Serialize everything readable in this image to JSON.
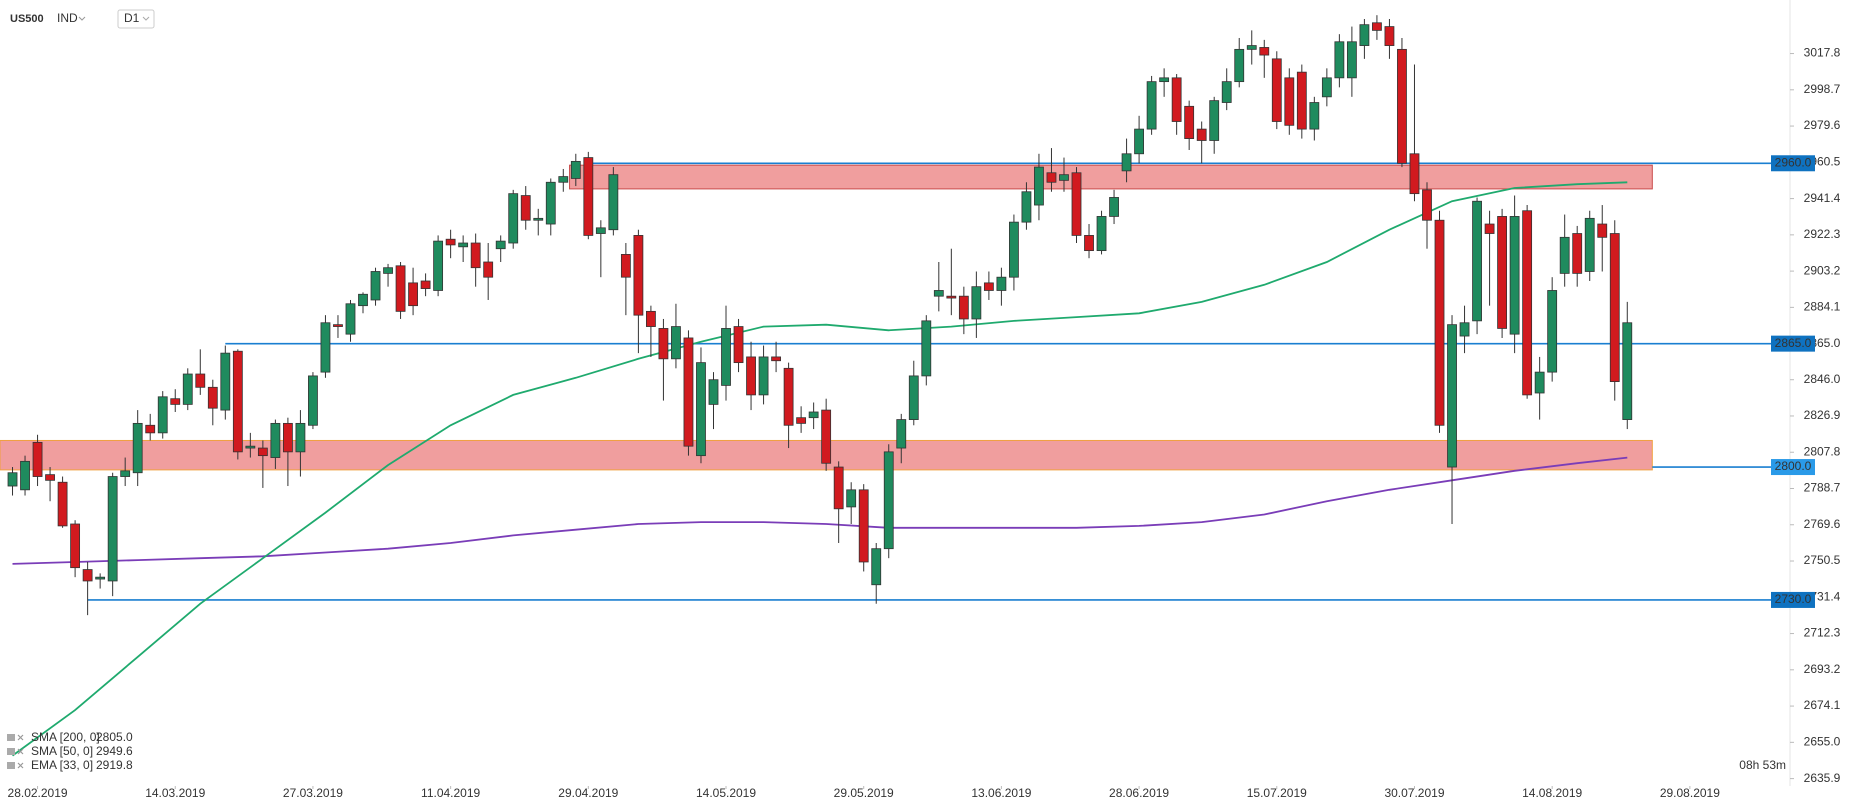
{
  "header": {
    "symbol": "US500",
    "market": "IND",
    "interval": "D1"
  },
  "chart_data": {
    "type": "candlestick",
    "up_color": "#1f8b5e",
    "down_color": "#d11a1f",
    "xlim": [
      -1,
      142
    ],
    "xticks": [
      {
        "value": 2,
        "label": "28.02.2019"
      },
      {
        "value": 13,
        "label": "14.03.2019"
      },
      {
        "value": 24,
        "label": "27.03.2019"
      },
      {
        "value": 35,
        "label": "11.04.2019"
      },
      {
        "value": 46,
        "label": "29.04.2019"
      },
      {
        "value": 57,
        "label": "14.05.2019"
      },
      {
        "value": 68,
        "label": "29.05.2019"
      },
      {
        "value": 79,
        "label": "13.06.2019"
      },
      {
        "value": 90,
        "label": "28.06.2019"
      },
      {
        "value": 101,
        "label": "15.07.2019"
      },
      {
        "value": 112,
        "label": "30.07.2019"
      },
      {
        "value": 123,
        "label": "14.08.2019"
      },
      {
        "value": 134,
        "label": "29.08.2019"
      }
    ],
    "ylim": [
      2632,
      3046
    ],
    "yticks": [
      3017.8,
      2998.7,
      2979.6,
      2960.5,
      2941.4,
      2922.3,
      2903.2,
      2884.1,
      {
        "value": 2865,
        "label": "2865.0"
      },
      {
        "value": 2846,
        "label": "2846.0"
      },
      2826.9,
      2807.8,
      2788.7,
      2769.6,
      2750.5,
      2731.4,
      2712.3,
      2693.2,
      2674.1,
      {
        "value": 2655,
        "label": "2655.0"
      },
      2635.9
    ],
    "ohlc": [
      [
        2790,
        2800,
        2785,
        2797
      ],
      [
        2788,
        2806,
        2785,
        2803
      ],
      [
        2813,
        2817,
        2790,
        2795
      ],
      [
        2796,
        2800,
        2782,
        2793
      ],
      [
        2792,
        2795,
        2768,
        2769
      ],
      [
        2770,
        2772,
        2742,
        2747
      ],
      [
        2746,
        2750,
        2722,
        2740
      ],
      [
        2741,
        2744,
        2736,
        2742
      ],
      [
        2740,
        2797,
        2732,
        2795
      ],
      [
        2795,
        2805,
        2790,
        2798
      ],
      [
        2797,
        2830,
        2790,
        2823
      ],
      [
        2822,
        2828,
        2814,
        2818
      ],
      [
        2818,
        2840,
        2815,
        2837
      ],
      [
        2836,
        2841,
        2829,
        2833
      ],
      [
        2833,
        2852,
        2830,
        2849
      ],
      [
        2849,
        2862,
        2838,
        2842
      ],
      [
        2842,
        2846,
        2822,
        2831
      ],
      [
        2830,
        2864,
        2825,
        2860
      ],
      [
        2861,
        2862,
        2804,
        2808
      ],
      [
        2810,
        2818,
        2805,
        2811
      ],
      [
        2810,
        2814,
        2789,
        2806
      ],
      [
        2805,
        2825,
        2799,
        2823
      ],
      [
        2823,
        2826,
        2790,
        2808
      ],
      [
        2808,
        2830,
        2795,
        2823
      ],
      [
        2822,
        2850,
        2820,
        2848
      ],
      [
        2850,
        2880,
        2847,
        2876
      ],
      [
        2875,
        2880,
        2868,
        2874
      ],
      [
        2870,
        2888,
        2866,
        2886
      ],
      [
        2885,
        2892,
        2881,
        2891
      ],
      [
        2888,
        2905,
        2885,
        2903
      ],
      [
        2902,
        2907,
        2895,
        2905
      ],
      [
        2906,
        2908,
        2878,
        2882
      ],
      [
        2897,
        2905,
        2880,
        2885
      ],
      [
        2898,
        2902,
        2890,
        2894
      ],
      [
        2893,
        2922,
        2890,
        2919
      ],
      [
        2920,
        2925,
        2910,
        2917
      ],
      [
        2916,
        2922,
        2908,
        2918
      ],
      [
        2918,
        2923,
        2895,
        2905
      ],
      [
        2908,
        2918,
        2888,
        2900
      ],
      [
        2915,
        2922,
        2908,
        2919
      ],
      [
        2918,
        2946,
        2915,
        2944
      ],
      [
        2943,
        2948,
        2925,
        2930
      ],
      [
        2930,
        2936,
        2922,
        2931
      ],
      [
        2928,
        2952,
        2922,
        2950
      ],
      [
        2950,
        2957,
        2945,
        2953
      ],
      [
        2952,
        2965,
        2948,
        2961
      ],
      [
        2963,
        2966,
        2920,
        2922
      ],
      [
        2923,
        2930,
        2900,
        2926
      ],
      [
        2925,
        2958,
        2922,
        2954
      ],
      [
        2912,
        2918,
        2880,
        2900
      ],
      [
        2922,
        2925,
        2860,
        2880
      ],
      [
        2882,
        2885,
        2858,
        2874
      ],
      [
        2873,
        2878,
        2835,
        2857
      ],
      [
        2857,
        2886,
        2852,
        2874
      ],
      [
        2868,
        2872,
        2806,
        2811
      ],
      [
        2806,
        2863,
        2802,
        2855
      ],
      [
        2833,
        2850,
        2820,
        2846
      ],
      [
        2843,
        2885,
        2835,
        2873
      ],
      [
        2874,
        2878,
        2850,
        2855
      ],
      [
        2858,
        2866,
        2830,
        2838
      ],
      [
        2838,
        2864,
        2833,
        2858
      ],
      [
        2858,
        2866,
        2850,
        2856
      ],
      [
        2852,
        2855,
        2810,
        2822
      ],
      [
        2826,
        2832,
        2818,
        2823
      ],
      [
        2826,
        2834,
        2820,
        2829
      ],
      [
        2830,
        2836,
        2798,
        2802
      ],
      [
        2800,
        2803,
        2760,
        2778
      ],
      [
        2779,
        2792,
        2770,
        2788
      ],
      [
        2788,
        2791,
        2745,
        2750
      ],
      [
        2738,
        2760,
        2728,
        2757
      ],
      [
        2757,
        2812,
        2752,
        2808
      ],
      [
        2810,
        2828,
        2802,
        2825
      ],
      [
        2825,
        2856,
        2822,
        2848
      ],
      [
        2848,
        2880,
        2843,
        2877
      ],
      [
        2890,
        2908,
        2882,
        2893
      ],
      [
        2890,
        2915,
        2880,
        2889
      ],
      [
        2890,
        2895,
        2870,
        2878
      ],
      [
        2878,
        2903,
        2868,
        2895
      ],
      [
        2897,
        2903,
        2888,
        2893
      ],
      [
        2893,
        2905,
        2885,
        2900
      ],
      [
        2900,
        2933,
        2893,
        2929
      ],
      [
        2929,
        2950,
        2925,
        2945
      ],
      [
        2938,
        2965,
        2930,
        2958
      ],
      [
        2955,
        2968,
        2945,
        2950
      ],
      [
        2951,
        2963,
        2945,
        2954
      ],
      [
        2955,
        2958,
        2918,
        2922
      ],
      [
        2922,
        2928,
        2910,
        2914
      ],
      [
        2914,
        2935,
        2912,
        2932
      ],
      [
        2932,
        2946,
        2928,
        2942
      ],
      [
        2956,
        2973,
        2950,
        2965
      ],
      [
        2965,
        2985,
        2960,
        2978
      ],
      [
        2978,
        3006,
        2975,
        3003
      ],
      [
        3003,
        3010,
        2995,
        3005
      ],
      [
        3005,
        3007,
        2975,
        2982
      ],
      [
        2990,
        2993,
        2967,
        2973
      ],
      [
        2978,
        2982,
        2960,
        2972
      ],
      [
        2972,
        2995,
        2965,
        2993
      ],
      [
        2992,
        3010,
        2988,
        3003
      ],
      [
        3003,
        3026,
        3000,
        3020
      ],
      [
        3020,
        3030,
        3012,
        3022
      ],
      [
        3021,
        3025,
        3005,
        3017
      ],
      [
        3015,
        3019,
        2978,
        2982
      ],
      [
        3005,
        3010,
        2975,
        2980
      ],
      [
        3008,
        3012,
        2973,
        2978
      ],
      [
        2978,
        2995,
        2972,
        2992
      ],
      [
        2995,
        3010,
        2990,
        3005
      ],
      [
        3005,
        3028,
        3000,
        3024
      ],
      [
        3005,
        3032,
        2995,
        3024
      ],
      [
        3022,
        3036,
        3015,
        3033
      ],
      [
        3034,
        3038,
        3025,
        3030
      ],
      [
        3032,
        3036,
        3015,
        3022
      ],
      [
        3020,
        3026,
        2958,
        2960
      ],
      [
        2965,
        3012,
        2940,
        2944
      ],
      [
        2946,
        2950,
        2915,
        2930
      ],
      [
        2930,
        2935,
        2818,
        2822
      ],
      [
        2800,
        2880,
        2770,
        2875
      ],
      [
        2869,
        2885,
        2860,
        2876
      ],
      [
        2877,
        2942,
        2870,
        2940
      ],
      [
        2928,
        2935,
        2885,
        2923
      ],
      [
        2932,
        2936,
        2868,
        2873
      ],
      [
        2870,
        2943,
        2860,
        2932
      ],
      [
        2935,
        2938,
        2836,
        2838
      ],
      [
        2839,
        2858,
        2825,
        2850
      ],
      [
        2850,
        2900,
        2845,
        2893
      ],
      [
        2902,
        2933,
        2895,
        2921
      ],
      [
        2923,
        2927,
        2895,
        2902
      ],
      [
        2903,
        2935,
        2898,
        2931
      ],
      [
        2928,
        2938,
        2903,
        2921
      ],
      [
        2923,
        2930,
        2835,
        2845
      ],
      [
        2825,
        2887,
        2820,
        2876
      ]
    ],
    "series": [
      {
        "name": "SMA [200, 0]",
        "color": "#7a3db8",
        "last": {
          "value": 2805,
          "label": "2805.0"
        },
        "x": [
          0,
          5,
          10,
          15,
          20,
          25,
          30,
          35,
          40,
          45,
          50,
          55,
          60,
          65,
          70,
          75,
          80,
          85,
          90,
          95,
          100,
          105,
          110,
          115,
          120,
          125,
          129
        ],
        "values": [
          2749,
          2750,
          2751,
          2752,
          2753,
          2755,
          2757,
          2760,
          2764,
          2767,
          2770,
          2771,
          2771,
          2770,
          2768,
          2768,
          2768,
          2768,
          2769,
          2771,
          2775,
          2782,
          2788,
          2793,
          2798,
          2802,
          2805
        ]
      },
      {
        "name": "SMA [50, 0]",
        "color": "#1faa6e",
        "last": 2949.6,
        "x": [
          0,
          5,
          10,
          15,
          20,
          25,
          30,
          35,
          40,
          45,
          50,
          55,
          60,
          65,
          70,
          75,
          80,
          85,
          90,
          95,
          100,
          105,
          110,
          115,
          120,
          125,
          129
        ],
        "values": [
          2648,
          2672,
          2700,
          2728,
          2752,
          2776,
          2801,
          2822,
          2838,
          2847,
          2857,
          2866,
          2874,
          2875,
          2872,
          2874,
          2877,
          2879,
          2881,
          2887,
          2896,
          2908,
          2925,
          2940,
          2947,
          2949,
          2950
        ]
      },
      {
        "name": "EMA [33, 0]",
        "color": "#e08a2a",
        "last": 2919.8
      }
    ],
    "levels": [
      {
        "value": 2960,
        "label": "2960.0"
      },
      {
        "value": 2865,
        "label": "2865.0"
      },
      {
        "value": 2800,
        "label": "2800.0"
      },
      {
        "value": 2730,
        "label": "2730.0"
      }
    ],
    "level_color": "#1a7fd1",
    "zones": [
      {
        "low": 2946.5,
        "high": 2959
      },
      {
        "low": 2798.5,
        "high": 2814
      }
    ],
    "zone_color": "#e86a6a",
    "countdown": "08h 53m"
  }
}
